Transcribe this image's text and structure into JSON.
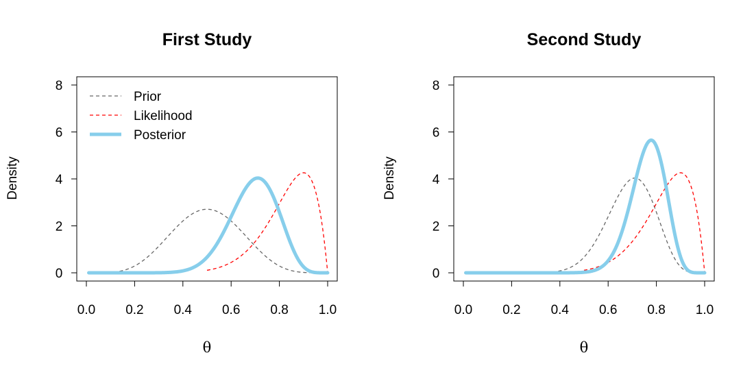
{
  "chart_data": [
    {
      "type": "line",
      "title": "First Study",
      "xlabel": "θ",
      "ylabel": "Density",
      "xlim": [
        0,
        1
      ],
      "ylim": [
        0,
        8
      ],
      "xticks": [
        "0.0",
        "0.2",
        "0.4",
        "0.6",
        "0.8",
        "1.0"
      ],
      "yticks": [
        "0",
        "2",
        "4",
        "6",
        "8"
      ],
      "legend": {
        "position": "top-left",
        "entries": [
          "Prior",
          "Likelihood",
          "Posterior"
        ]
      },
      "series": [
        {
          "name": "Prior",
          "color": "#666666",
          "style": "dashed",
          "dist": "beta",
          "a": 6,
          "b": 6,
          "range": [
            0.01,
            0.99
          ]
        },
        {
          "name": "Likelihood",
          "color": "#ff0000",
          "style": "dashed",
          "dist": "beta",
          "a": 10,
          "b": 2,
          "range": [
            0.5,
            1.0
          ]
        },
        {
          "name": "Posterior",
          "color": "#87ceeb",
          "style": "thick",
          "dist": "beta",
          "a": 15,
          "b": 6.7,
          "range": [
            0.01,
            1.0
          ]
        }
      ]
    },
    {
      "type": "line",
      "title": "Second Study",
      "xlabel": "θ",
      "ylabel": "Density",
      "xlim": [
        0,
        1
      ],
      "ylim": [
        0,
        8
      ],
      "xticks": [
        "0.0",
        "0.2",
        "0.4",
        "0.6",
        "0.8",
        "1.0"
      ],
      "yticks": [
        "0",
        "2",
        "4",
        "6",
        "8"
      ],
      "series": [
        {
          "name": "Prior",
          "color": "#666666",
          "style": "dashed",
          "dist": "beta",
          "a": 15,
          "b": 6.7,
          "range": [
            0.01,
            0.99
          ]
        },
        {
          "name": "Likelihood",
          "color": "#ff0000",
          "style": "dashed",
          "dist": "beta",
          "a": 10,
          "b": 2,
          "range": [
            0.5,
            1.0
          ]
        },
        {
          "name": "Posterior",
          "color": "#87ceeb",
          "style": "thick",
          "dist": "beta",
          "a": 27,
          "b": 8.4,
          "range": [
            0.01,
            1.0
          ]
        }
      ]
    }
  ]
}
